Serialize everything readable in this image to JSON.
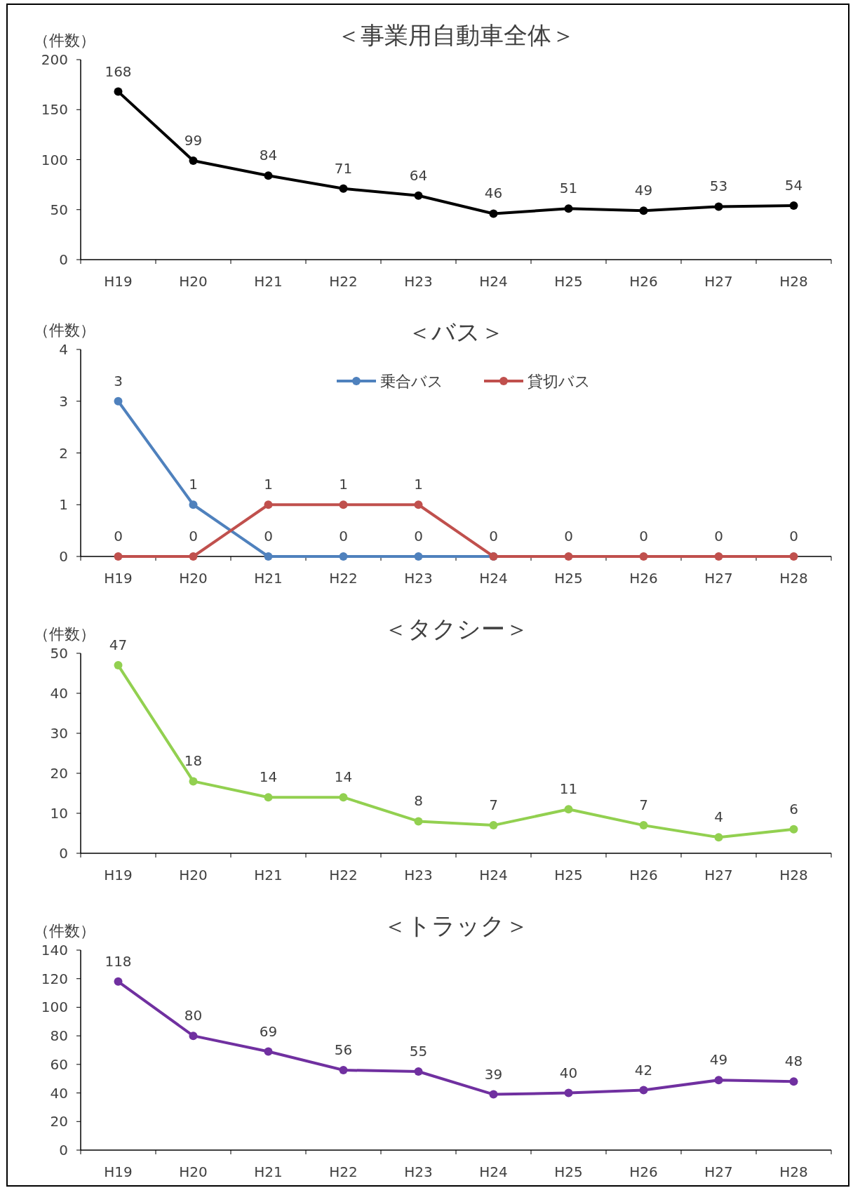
{
  "chart_data": [
    {
      "type": "line",
      "title": "＜事業用自動車全体＞",
      "ylabel": "（件数）",
      "categories": [
        "H19",
        "H20",
        "H21",
        "H22",
        "H23",
        "H24",
        "H25",
        "H26",
        "H27",
        "H28"
      ],
      "values": [
        168,
        99,
        84,
        71,
        64,
        46,
        51,
        49,
        53,
        54
      ],
      "color": "#000000",
      "ylim": [
        0,
        200
      ],
      "yticks": [
        0,
        50,
        100,
        150,
        200
      ],
      "data_labels": true,
      "marker": "circle",
      "grid": false
    },
    {
      "type": "line",
      "title": "＜バス＞",
      "ylabel": "（件数）",
      "categories": [
        "H19",
        "H20",
        "H21",
        "H22",
        "H23",
        "H24",
        "H25",
        "H26",
        "H27",
        "H28"
      ],
      "series": [
        {
          "name": "乗合バス",
          "color": "#4f81bd",
          "values": [
            3,
            1,
            0,
            0,
            0,
            0,
            null,
            null,
            null,
            null
          ],
          "value_labels": [
            "3",
            "1",
            "0",
            "0",
            "0",
            null,
            null,
            null,
            null,
            null
          ]
        },
        {
          "name": "貸切バス",
          "color": "#c0504d",
          "values": [
            0,
            0,
            1,
            1,
            1,
            0,
            0,
            0,
            0,
            0
          ]
        }
      ],
      "ylim": [
        0,
        4
      ],
      "yticks": [
        0,
        1,
        2,
        3,
        4
      ],
      "data_labels": true,
      "marker": "circle",
      "legend": "top",
      "grid": false
    },
    {
      "type": "line",
      "title": "＜タクシー＞",
      "ylabel": "（件数）",
      "categories": [
        "H19",
        "H20",
        "H21",
        "H22",
        "H23",
        "H24",
        "H25",
        "H26",
        "H27",
        "H28"
      ],
      "values": [
        47,
        18,
        14,
        14,
        8,
        7,
        11,
        7,
        4,
        6
      ],
      "color": "#92d050",
      "ylim": [
        0,
        50
      ],
      "yticks": [
        0,
        10,
        20,
        30,
        40,
        50
      ],
      "data_labels": true,
      "marker": "circle",
      "grid": false
    },
    {
      "type": "line",
      "title": "＜トラック＞",
      "ylabel": "（件数）",
      "categories": [
        "H19",
        "H20",
        "H21",
        "H22",
        "H23",
        "H24",
        "H25",
        "H26",
        "H27",
        "H28"
      ],
      "values": [
        118,
        80,
        69,
        56,
        55,
        39,
        40,
        42,
        49,
        48
      ],
      "color": "#7030a0",
      "ylim": [
        0,
        140
      ],
      "yticks": [
        0,
        20,
        40,
        60,
        80,
        100,
        120,
        140
      ],
      "data_labels": true,
      "marker": "circle",
      "grid": false
    }
  ]
}
